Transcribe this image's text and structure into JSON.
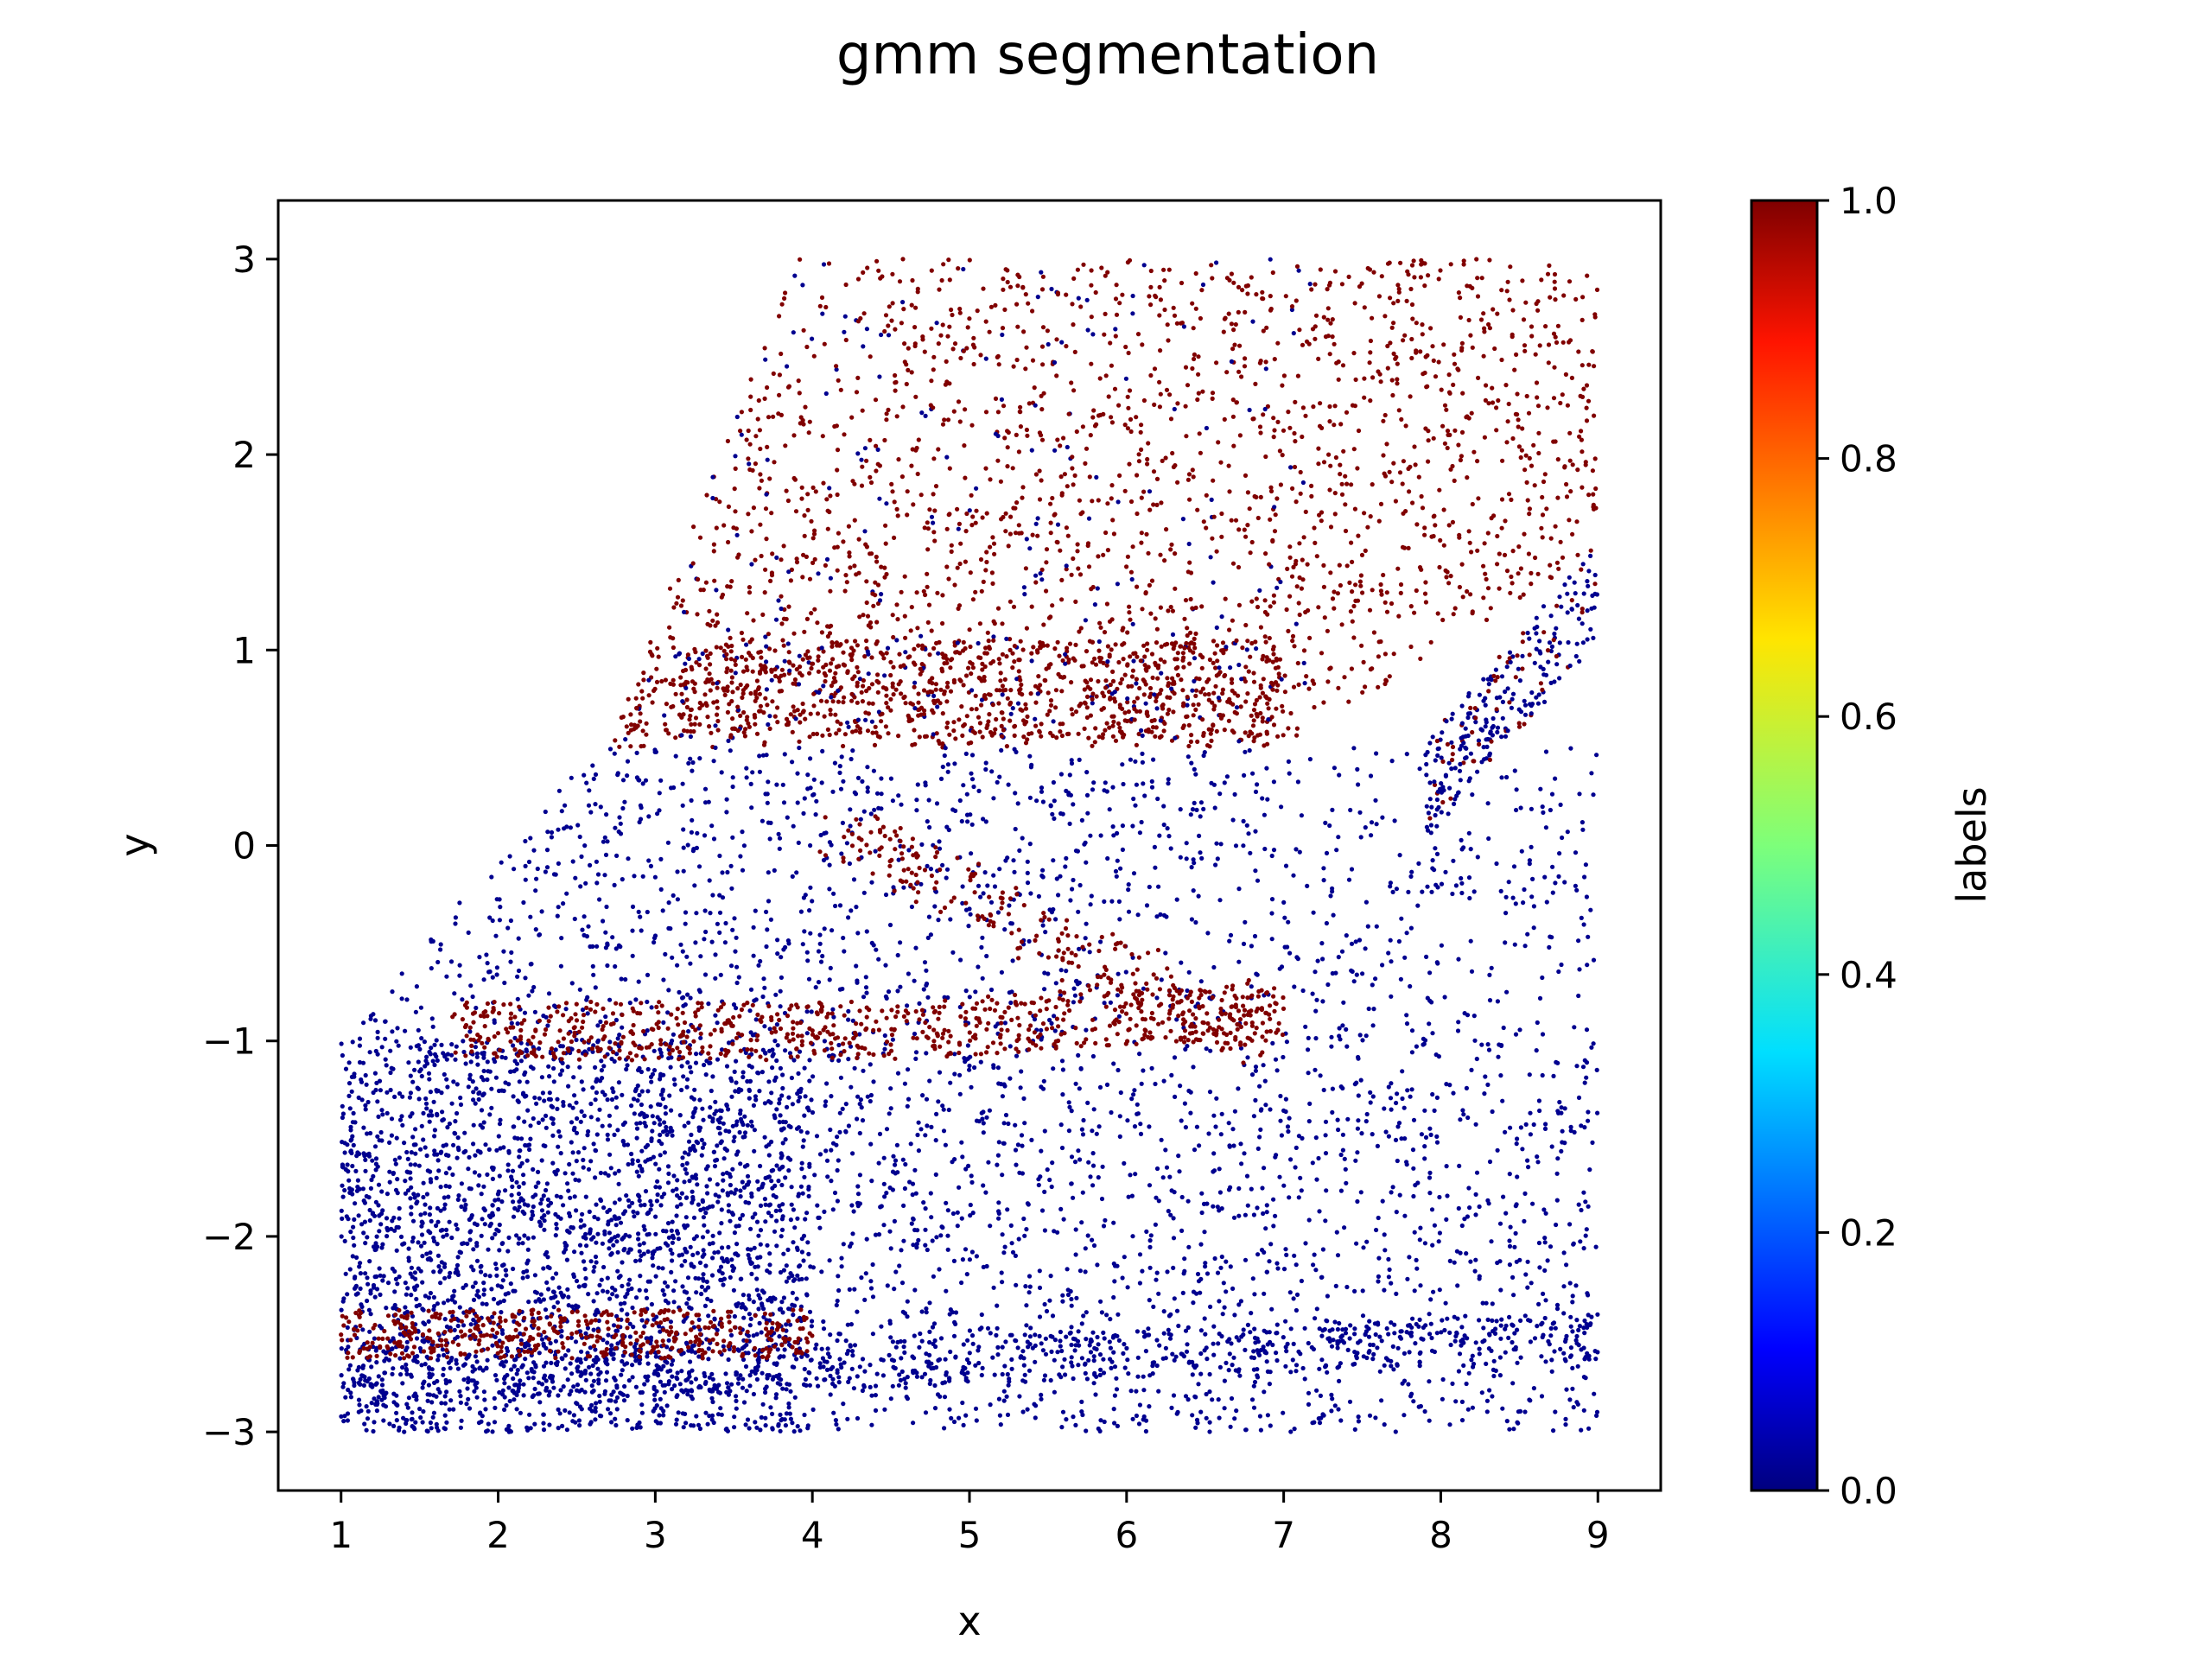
{
  "chart_data": {
    "type": "scatter",
    "title": "gmm segmentation",
    "xlabel": "x",
    "ylabel": "y",
    "xlim": [
      0.6,
      9.4
    ],
    "ylim": [
      -3.3,
      3.3
    ],
    "xticks": [
      1,
      2,
      3,
      4,
      5,
      6,
      7,
      8,
      9
    ],
    "yticks": [
      -3,
      -2,
      -1,
      0,
      1,
      2,
      3
    ],
    "xtick_labels": [
      "1",
      "2",
      "3",
      "4",
      "5",
      "6",
      "7",
      "8",
      "9"
    ],
    "ytick_labels": [
      "−3",
      "−2",
      "−1",
      "0",
      "1",
      "2",
      "3"
    ],
    "grid": false,
    "colorbar": {
      "label": "labels",
      "colormap": "jet",
      "range": [
        0.0,
        1.0
      ],
      "ticks": [
        0.0,
        0.2,
        0.4,
        0.6,
        0.8,
        1.0
      ],
      "tick_labels": [
        "0.0",
        "0.2",
        "0.4",
        "0.6",
        "0.8",
        "1.0"
      ]
    },
    "label_colors": {
      "0": "#00008f",
      "1": "#800000"
    },
    "point_regions": [
      {
        "label": 1,
        "description_value": "upper band",
        "x_min": 2.7,
        "x_max": 9.0,
        "y_min": 0.5,
        "y_max": 3.0,
        "density": 1.0
      },
      {
        "label": 0,
        "description_value": "upper band inclusions",
        "x_min": 3.5,
        "x_max": 7.0,
        "y_min": 0.6,
        "y_max": 3.0,
        "density": 0.15
      },
      {
        "label": 0,
        "description_value": "middle band",
        "x_min": 1.0,
        "x_max": 9.0,
        "y_min": -3.0,
        "y_max": 0.5,
        "density": 1.0
      },
      {
        "label": 1,
        "description_value": "stripe near -1",
        "x_min": 1.7,
        "x_max": 7.0,
        "y_min": -1.15,
        "y_max": -0.8,
        "density": 0.7
      },
      {
        "label": 1,
        "description_value": "stripe near -2.5",
        "x_min": 1.0,
        "x_max": 4.0,
        "y_min": -2.65,
        "y_max": -2.35,
        "density": 0.6
      },
      {
        "label": 0,
        "description_value": "upper-right island",
        "x_min": 8.0,
        "x_max": 9.0,
        "y_min": 0.4,
        "y_max": 1.4,
        "density": 0.5
      }
    ]
  }
}
